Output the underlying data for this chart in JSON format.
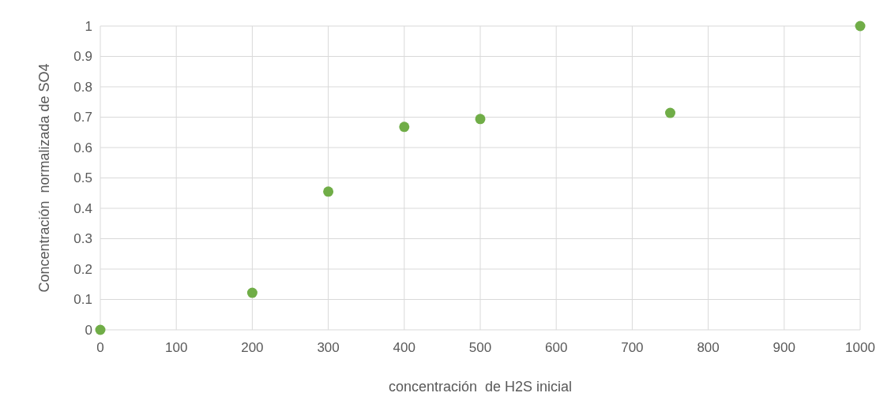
{
  "chart_data": {
    "type": "scatter",
    "xlabel": "concentración  de H2S inicial",
    "ylabel": "Concentración  normalizada de SO4",
    "x": [
      0,
      200,
      300,
      400,
      500,
      750,
      1000
    ],
    "series": [
      {
        "color": "#70ad47",
        "values": [
          0,
          0.122,
          0.455,
          0.668,
          0.694,
          0.714,
          1
        ]
      }
    ],
    "xlim": [
      0,
      1000
    ],
    "xticks": [
      0,
      100,
      200,
      300,
      400,
      500,
      600,
      700,
      800,
      900,
      1000
    ],
    "ylim": [
      0,
      1
    ],
    "yticks": [
      0,
      0.1,
      0.2,
      0.3,
      0.4,
      0.5,
      0.6,
      0.7,
      0.8,
      0.9,
      1
    ],
    "grid": true,
    "marker": "circle"
  }
}
